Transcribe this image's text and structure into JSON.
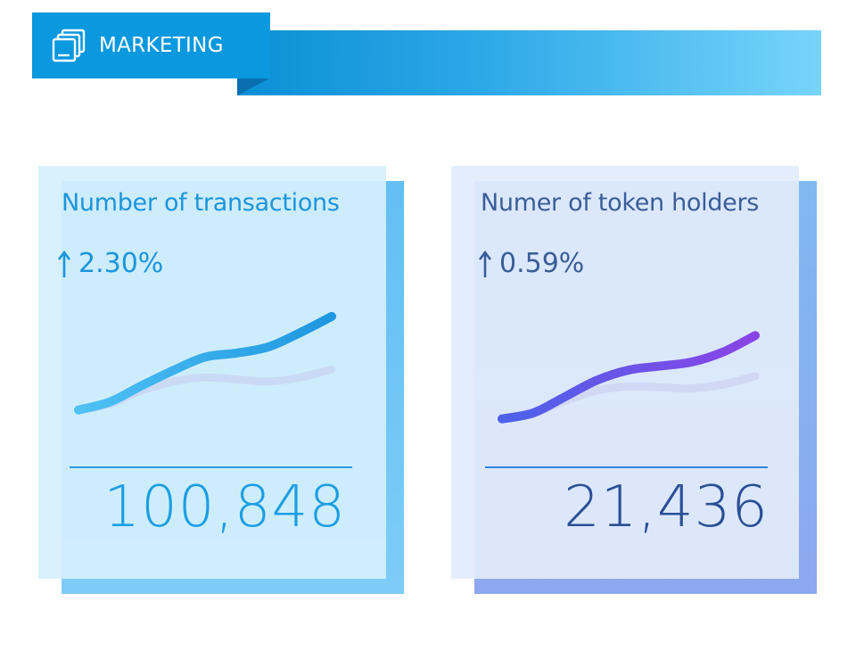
{
  "header": {
    "title": "MARKETING",
    "icon": "stacked-windows-icon",
    "colors": {
      "tab": "#0a98de",
      "bar_start": "#0b8fd6",
      "bar_end": "#77d4fb"
    }
  },
  "cards": [
    {
      "title": "Number of  transactions",
      "change_direction": "up",
      "change": "2.30%",
      "value": "100,848",
      "accent": "#1b95dc",
      "sparkline": {
        "main": [
          2,
          10,
          26,
          41,
          54,
          58,
          64,
          78,
          94
        ],
        "shadow": [
          2,
          8,
          21,
          30,
          34,
          32,
          30,
          34,
          42
        ],
        "colors": [
          "#4fc1f4",
          "#1e97e0"
        ]
      }
    },
    {
      "title": "Numer of token holders",
      "change_direction": "up",
      "change": "0.59%",
      "value": "21,436",
      "accent": "#3a5d98",
      "sparkline": {
        "main": [
          2,
          8,
          24,
          40,
          50,
          54,
          58,
          68,
          84
        ],
        "shadow": [
          2,
          8,
          20,
          30,
          34,
          33,
          32,
          36,
          44
        ],
        "colors": [
          "#4d62ea",
          "#8a44e6"
        ]
      }
    }
  ]
}
